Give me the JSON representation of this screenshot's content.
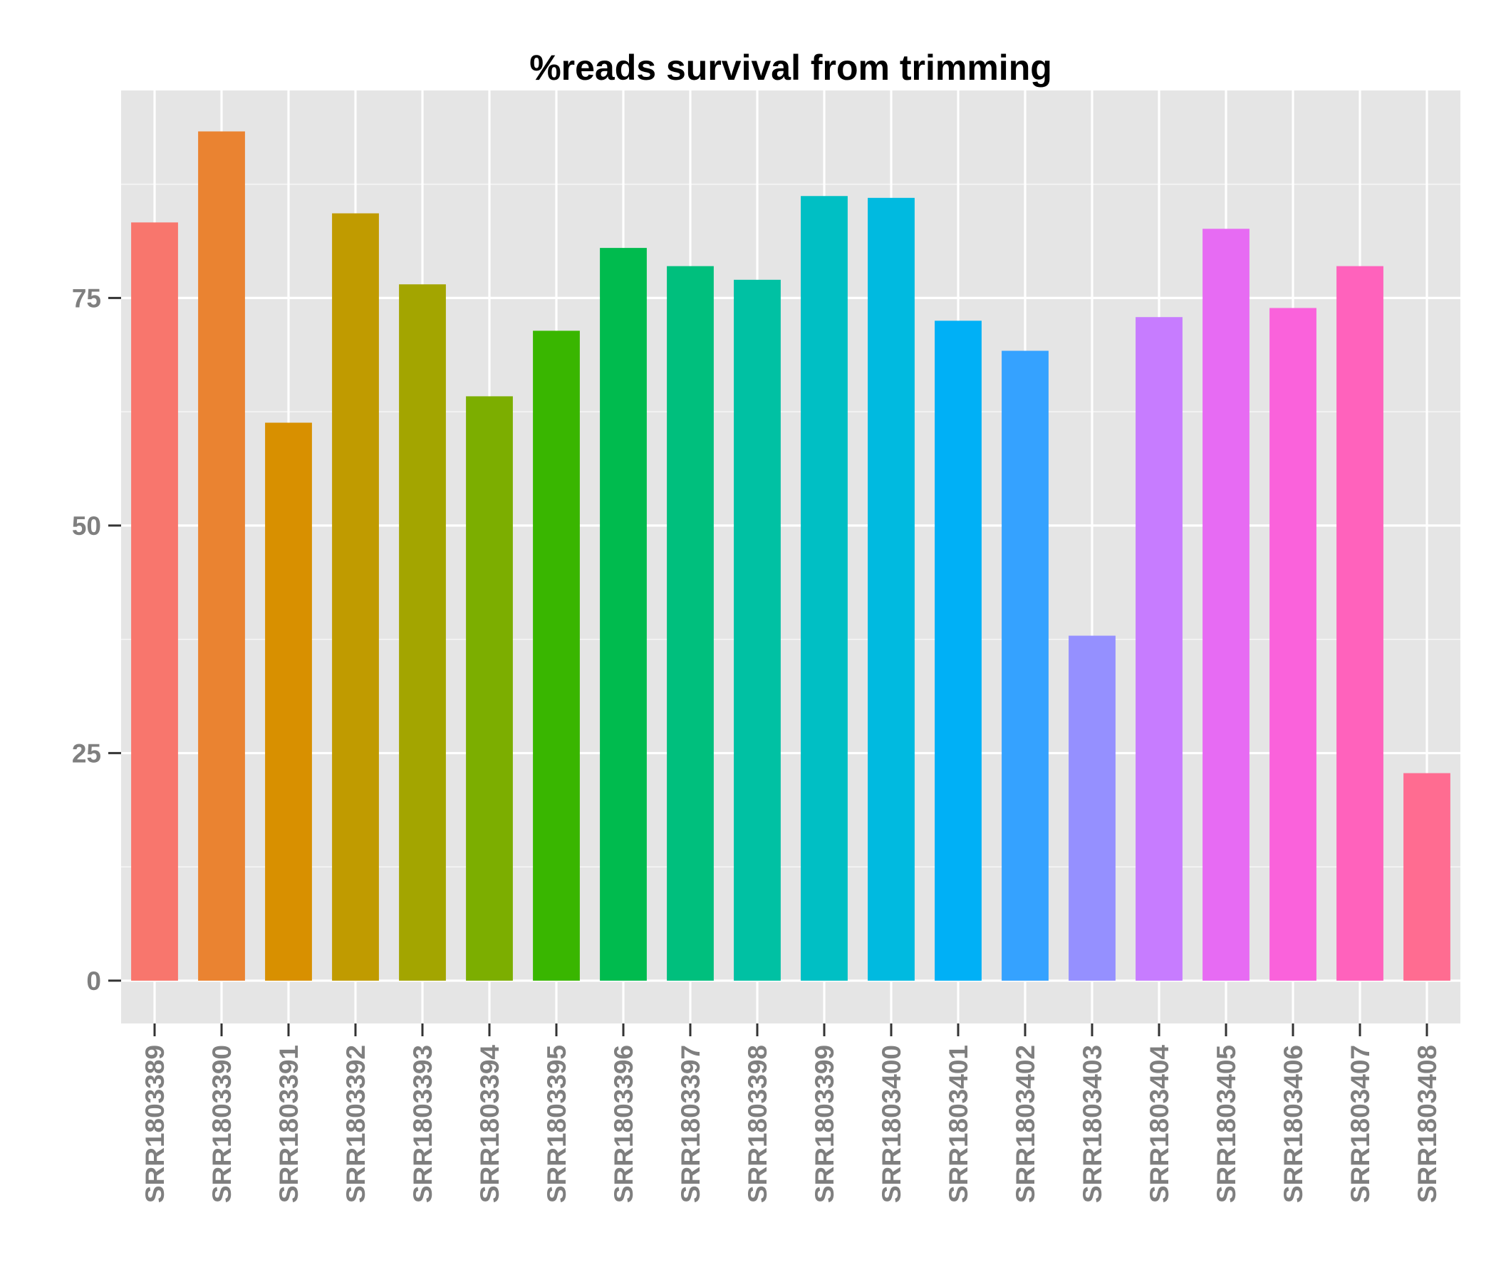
{
  "chart_data": {
    "type": "bar",
    "title": "%reads survival from trimming",
    "xlabel": "",
    "ylabel": "",
    "categories": [
      "SRR1803389",
      "SRR1803390",
      "SRR1803391",
      "SRR1803392",
      "SRR1803393",
      "SRR1803394",
      "SRR1803395",
      "SRR1803396",
      "SRR1803397",
      "SRR1803398",
      "SRR1803399",
      "SRR1803400",
      "SRR1803401",
      "SRR1803402",
      "SRR1803403",
      "SRR1803404",
      "SRR1803405",
      "SRR1803406",
      "SRR1803407",
      "SRR1803408"
    ],
    "values": [
      83.3,
      93.3,
      61.3,
      84.3,
      76.5,
      64.2,
      71.4,
      80.5,
      78.5,
      77.0,
      86.2,
      86.0,
      72.5,
      69.2,
      37.9,
      72.9,
      82.6,
      73.9,
      78.5,
      22.8
    ],
    "colors": [
      "#F8766D",
      "#EA8331",
      "#D89000",
      "#C09B00",
      "#A3A500",
      "#7CAE00",
      "#39B600",
      "#00BB4E",
      "#00BF7D",
      "#00C1A3",
      "#00BFC4",
      "#00BAE0",
      "#00B0F6",
      "#35A2FF",
      "#9590FF",
      "#C77CFF",
      "#E76BF3",
      "#FA62DB",
      "#FF62BC",
      "#FF6C91"
    ],
    "yticks": [
      0,
      25,
      50,
      75
    ],
    "ylim": [
      -4.7,
      97.8
    ],
    "grid": true,
    "legend": "none",
    "panel_background": "#E5E5E5",
    "grid_color": "#FFFFFF"
  }
}
